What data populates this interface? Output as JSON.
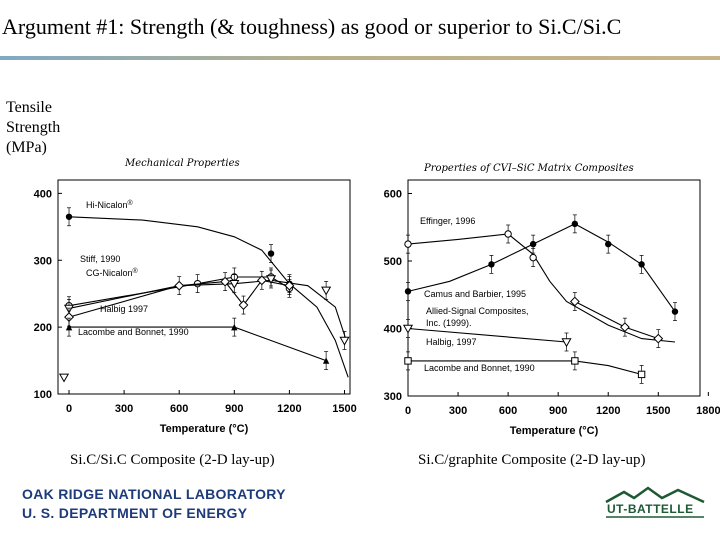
{
  "slide": {
    "title": "Argument #1: Strength (& toughness) as good or superior to Si.C/Si.C",
    "y_label_lines": [
      "Tensile",
      "Strength",
      "(MPa)"
    ],
    "caption_left": "Si.C/Si.C Composite (2-D lay-up)",
    "caption_right": "Si.C/graphite Composite (2-D lay-up)",
    "footer_org_line1": "OAK RIDGE NATIONAL LABORATORY",
    "footer_org_line2": "U. S. DEPARTMENT OF ENERGY",
    "footer_logo_text": "UT-BATTELLE",
    "colors": {
      "rule_left": "#7fa9c4",
      "rule_right": "#c9b48a",
      "footer_blue": "#1d3b7a",
      "logo_green": "#1d5a33"
    }
  },
  "chart_data": [
    {
      "type": "line",
      "title": "Mechanical Properties",
      "xlabel": "Temperature (°C)",
      "ylabel": "Tensile Strength (MPa)",
      "xlim": [
        -60,
        1530
      ],
      "ylim": [
        100,
        420
      ],
      "xticks": [
        0,
        300,
        600,
        900,
        1200,
        1500
      ],
      "yticks": [
        100,
        200,
        300,
        400
      ],
      "series": [
        {
          "name": "Hi-Nicalon®",
          "marker": "dot",
          "x": [
            0,
            1100,
            1200
          ],
          "y": [
            365,
            310,
            265
          ],
          "curve": [
            [
              0,
              365
            ],
            [
              400,
              360
            ],
            [
              700,
              350
            ],
            [
              900,
              335
            ],
            [
              1050,
              315
            ],
            [
              1200,
              265
            ],
            [
              1350,
              230
            ],
            [
              1450,
              180
            ],
            [
              1520,
              125
            ]
          ]
        },
        {
          "name": "Stiff, 1990",
          "marker": "circle",
          "x": [
            0,
            700,
            900,
            1100,
            1200
          ],
          "y": [
            232,
            265,
            275,
            275,
            258
          ],
          "curve": null
        },
        {
          "name": "CG-Nicalon®",
          "marker": "triangle-down",
          "x": [
            0,
            900,
            1100,
            1400,
            1500
          ],
          "y": [
            228,
            265,
            272,
            255,
            180
          ],
          "curve": [
            [
              0,
              228
            ],
            [
              300,
              245
            ],
            [
              600,
              262
            ],
            [
              900,
              265
            ],
            [
              1100,
              270
            ],
            [
              1300,
              262
            ],
            [
              1450,
              230
            ],
            [
              1510,
              180
            ]
          ]
        },
        {
          "name": "Halbig 1997",
          "marker": "diamond",
          "x": [
            0,
            600,
            850,
            950,
            1050,
            1200
          ],
          "y": [
            215,
            262,
            268,
            233,
            270,
            262
          ],
          "curve": null
        },
        {
          "name": "Lacombe and Bonnet, 1990",
          "marker": "triangle-up",
          "x": [
            0,
            900,
            1400
          ],
          "y": [
            200,
            200,
            150
          ],
          "curve": null
        }
      ],
      "outlier": {
        "marker": "triangle-down",
        "x": [
          0
        ],
        "y": [
          125
        ]
      }
    },
    {
      "type": "line",
      "title": "Properties of CVI–SiC Matrix Composites",
      "xlabel": "Temperature (°C)",
      "ylabel": "Tensile Strength (MPa)",
      "xlim": [
        0,
        1750
      ],
      "ylim": [
        300,
        620
      ],
      "xticks": [
        0,
        300,
        600,
        900,
        1200,
        1500,
        1800
      ],
      "yticks": [
        300,
        400,
        500,
        600
      ],
      "series": [
        {
          "name": "Effinger, 1996",
          "marker": "circle",
          "x": [
            0,
            600,
            750
          ],
          "y": [
            525,
            540,
            505
          ],
          "curve": [
            [
              0,
              525
            ],
            [
              300,
              532
            ],
            [
              600,
              540
            ],
            [
              750,
              510
            ],
            [
              850,
              470
            ],
            [
              950,
              440
            ],
            [
              1200,
              405
            ],
            [
              1400,
              385
            ],
            [
              1600,
              380
            ]
          ]
        },
        {
          "name": "Camus and Barbier, 1995",
          "marker": "dot",
          "x": [
            0,
            500,
            750,
            1000,
            1200,
            1400,
            1600
          ],
          "y": [
            455,
            495,
            525,
            555,
            525,
            495,
            425
          ],
          "curve": [
            [
              0,
              455
            ],
            [
              250,
              470
            ],
            [
              500,
              495
            ],
            [
              750,
              525
            ],
            [
              1000,
              555
            ],
            [
              1200,
              528
            ],
            [
              1400,
              495
            ],
            [
              1600,
              425
            ]
          ]
        },
        {
          "name": "Allied-Signal Composites, Inc. (1999).",
          "marker": "diamond",
          "x": [
            1000,
            1300,
            1500
          ],
          "y": [
            440,
            402,
            385
          ],
          "curve": null
        },
        {
          "name": "Halbig, 1997",
          "marker": "triangle-down",
          "x": [
            0,
            950
          ],
          "y": [
            400,
            380
          ],
          "curve": null
        },
        {
          "name": "Lacombe and Bonnet, 1990",
          "marker": "square",
          "x": [
            0,
            1000,
            1400
          ],
          "y": [
            352,
            352,
            332
          ],
          "curve": [
            [
              0,
              352
            ],
            [
              500,
              352
            ],
            [
              1000,
              352
            ],
            [
              1200,
              345
            ],
            [
              1400,
              332
            ]
          ]
        }
      ]
    }
  ]
}
